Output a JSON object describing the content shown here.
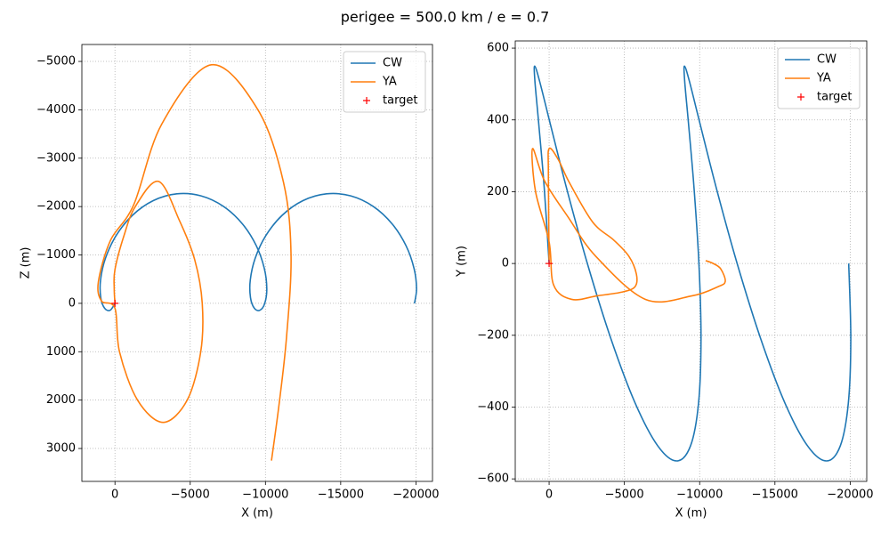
{
  "title": "perigee = 500.0 km / e = 0.7",
  "chart_data": [
    {
      "type": "line",
      "xlabel": "X (m)",
      "ylabel": "Z (m)",
      "xlim": [
        2200,
        -21100
      ],
      "ylim": [
        3680,
        -5350
      ],
      "xticks": [
        0,
        {
          "value": -5000,
          "label": "−5000"
        },
        {
          "value": -10000,
          "label": "−10000"
        },
        {
          "value": -15000,
          "label": "−15000"
        },
        {
          "value": -20000,
          "label": "−20000"
        }
      ],
      "yticks": [
        {
          "value": -5000,
          "label": "−5000"
        },
        {
          "value": -4000,
          "label": "−4000"
        },
        {
          "value": -3000,
          "label": "−3000"
        },
        {
          "value": -2000,
          "label": "−2000"
        },
        {
          "value": -1000,
          "label": "−1000"
        },
        0,
        1000,
        2000,
        3000
      ],
      "grid": true,
      "legend": "upper right",
      "series": [
        {
          "name": "CW",
          "color": "#1f77b4",
          "x": [
            -19901,
            -20040,
            -19876,
            -19343,
            -18425,
            -17167,
            -15667,
            -14058,
            -12490,
            -11108,
            -10027,
            -9317,
            -8991,
            -9006,
            -9261,
            -9627,
            -9951,
            -10090,
            -9926,
            -9393,
            -8475,
            -7217,
            -5717,
            -4108,
            -2540,
            -1158,
            -77,
            633,
            959,
            944,
            689,
            323,
            -1
          ],
          "values": [
            2,
            -301,
            -719,
            -1190,
            -1640,
            -2002,
            -2221,
            -2263,
            -2122,
            -1819,
            -1401,
            -931,
            -480,
            -118,
            101,
            143,
            2,
            -301,
            -719,
            -1190,
            -1640,
            -2002,
            -2221,
            -2263,
            -2122,
            -1819,
            -1401,
            -931,
            -480,
            -118,
            101,
            143,
            2
          ]
        },
        {
          "name": "YA",
          "color": "#ff7f0e",
          "x": [
            0,
            50,
            0,
            -600,
            -1350,
            -2900,
            -4300,
            -5300,
            -5800,
            -5700,
            -4800,
            -3200,
            -1500,
            -300,
            0,
            900,
            1100,
            300,
            -1250,
            -3100,
            -6400,
            -9500,
            -11200,
            -11700,
            -11400,
            -10900,
            -10400
          ],
          "values": [
            0,
            -300,
            -700,
            -1400,
            -2000,
            -2520,
            -1700,
            -900,
            0,
            1000,
            2000,
            2460,
            2000,
            1000,
            100,
            -50,
            -450,
            -1300,
            -2040,
            -3700,
            -4930,
            -4000,
            -2500,
            -1000,
            700,
            2100,
            3250
          ]
        },
        {
          "name": "target",
          "color": "#ff0000",
          "marker": "+",
          "x": [
            0
          ],
          "values": [
            0
          ]
        }
      ]
    },
    {
      "type": "line",
      "xlabel": "X (m)",
      "ylabel": "Y (m)",
      "xlim": [
        2250,
        -21100
      ],
      "ylim": [
        -607,
        620
      ],
      "xticks": [
        0,
        {
          "value": -5000,
          "label": "−5000"
        },
        {
          "value": -10000,
          "label": "−10000"
        },
        {
          "value": -15000,
          "label": "−15000"
        },
        {
          "value": -20000,
          "label": "−20000"
        }
      ],
      "yticks": [
        {
          "value": -600,
          "label": "−600"
        },
        {
          "value": -400,
          "label": "−400"
        },
        {
          "value": -200,
          "label": "−200"
        },
        0,
        200,
        400,
        600
      ],
      "grid": true,
      "legend": "upper right",
      "series": [
        {
          "name": "CW",
          "color": "#1f77b4",
          "x": [
            -19901,
            -20040,
            -19876,
            -19343,
            -18425,
            -17167,
            -15667,
            -14058,
            -12490,
            -11108,
            -10027,
            -9317,
            -8991,
            -9006,
            -9261,
            -9627,
            -9951,
            -10090,
            -9926,
            -9393,
            -8475,
            -7217,
            -5717,
            -4108,
            -2540,
            -1158,
            -77,
            633,
            959,
            944,
            689,
            323,
            -1
          ],
          "values": [
            0,
            -210,
            -389,
            -508,
            -550,
            -508,
            -389,
            -210,
            0,
            210,
            389,
            508,
            550,
            508,
            389,
            210,
            0,
            -210,
            -389,
            -508,
            -550,
            -508,
            -389,
            -210,
            0,
            210,
            389,
            508,
            550,
            508,
            389,
            210,
            0
          ]
        },
        {
          "name": "YA",
          "color": "#ff7f0e",
          "x": [
            0,
            50,
            0,
            -600,
            -1350,
            -2900,
            -4300,
            -5300,
            -5800,
            -5700,
            -4800,
            -3200,
            -1500,
            -300,
            0,
            900,
            1100,
            300,
            -1250,
            -3100,
            -6400,
            -9500,
            -11200,
            -11700,
            -11400,
            -10900,
            -10400
          ],
          "values": [
            10,
            250,
            320,
            290,
            225,
            115,
            65,
            20,
            -30,
            -65,
            -80,
            -90,
            -100,
            -60,
            60,
            200,
            320,
            230,
            130,
            20,
            -100,
            -90,
            -65,
            -50,
            -15,
            0,
            8
          ]
        },
        {
          "name": "target",
          "color": "#ff0000",
          "marker": "+",
          "x": [
            0
          ],
          "values": [
            0
          ]
        }
      ]
    }
  ]
}
